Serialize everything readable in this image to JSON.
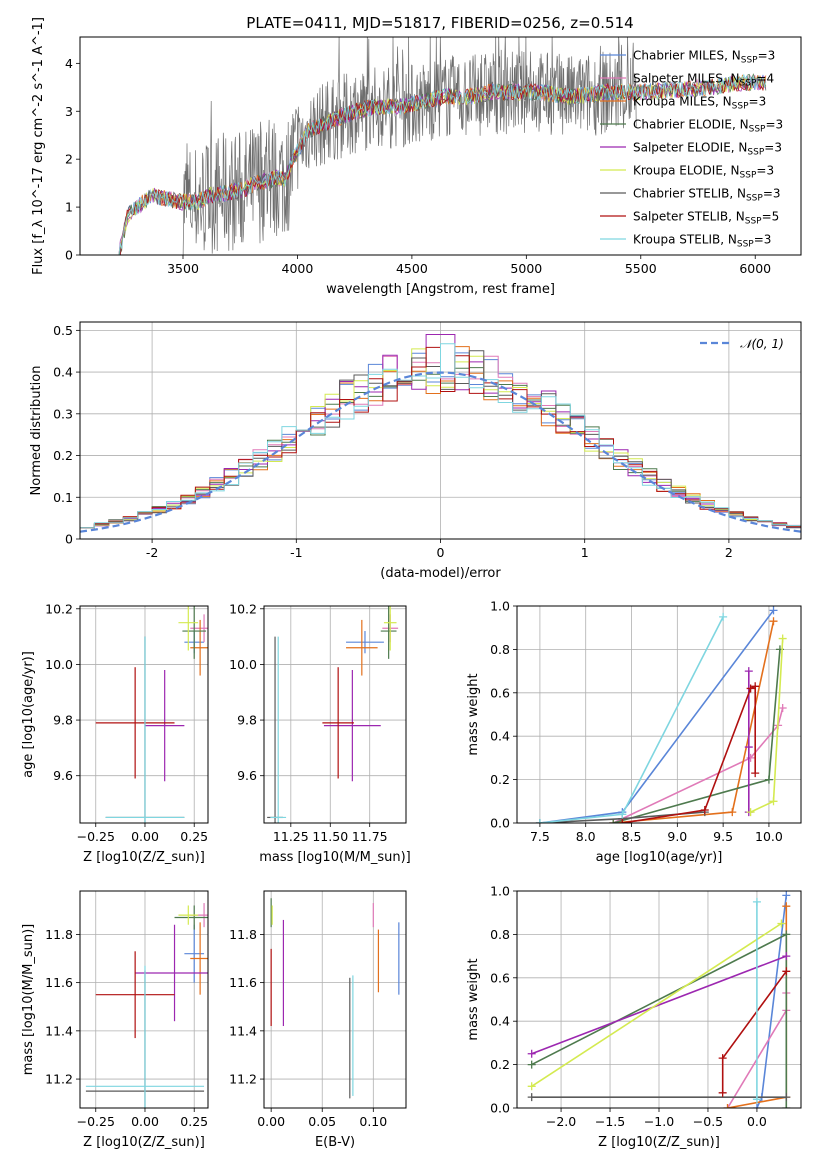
{
  "title": "PLATE=0411, MJD=51817, FIBERID=0256, z=0.514",
  "colors": {
    "Chabrier MILES": "#5a86d8",
    "Salpeter MILES": "#e07ab8",
    "Kroupa MILES": "#e3701c",
    "Chabrier ELODIE": "#4e7a4e",
    "Salpeter ELODIE": "#9c27b0",
    "Kroupa ELODIE": "#d4ea50",
    "Chabrier STELIB": "#5a5a5a",
    "Salpeter STELIB": "#b01010",
    "Kroupa STELIB": "#7fd6e0"
  },
  "legend_labels": [
    "Chabrier MILES, N_SSP=3",
    "Salpeter MILES, N_SSP=4",
    "Kroupa MILES, N_SSP=3",
    "Chabrier ELODIE, N_SSP=3",
    "Salpeter ELODIE, N_SSP=3",
    "Kroupa ELODIE, N_SSP=3",
    "Chabrier STELIB, N_SSP=3",
    "Salpeter STELIB, N_SSP=5",
    "Kroupa STELIB, N_SSP=3"
  ],
  "chart_data": [
    {
      "type": "line",
      "title": "PLATE=0411, MJD=51817, FIBERID=0256, z=0.514",
      "xlabel": "wavelength [Angstrom, rest frame]",
      "ylabel": "Flux [f_λ 10^-17 erg cm^-2 s^-1 A^-1]",
      "xlim": [
        3050,
        6200
      ],
      "ylim": [
        0,
        4.55
      ],
      "xticks": [
        3500,
        4000,
        4500,
        5000,
        5500,
        6000
      ],
      "yticks": [
        0,
        1,
        2,
        3,
        4
      ],
      "model_continuum": {
        "x": [
          3220,
          3260,
          3300,
          3360,
          3450,
          3500,
          3560,
          3620,
          3700,
          3760,
          3820,
          3900,
          3950,
          3980,
          4050,
          4150,
          4250,
          4350,
          4450,
          4550,
          4650,
          4750,
          4850,
          4950,
          5050,
          5200,
          5350,
          5500,
          5650,
          5800,
          5950,
          6050
        ],
        "y": [
          0.0,
          0.85,
          1.0,
          1.25,
          1.15,
          1.1,
          1.1,
          1.25,
          1.3,
          1.35,
          1.5,
          1.6,
          1.6,
          2.0,
          2.6,
          2.8,
          3.0,
          3.1,
          3.1,
          3.2,
          3.3,
          3.3,
          3.4,
          3.4,
          3.4,
          3.3,
          3.4,
          3.4,
          3.45,
          3.5,
          3.6,
          3.6
        ]
      },
      "data_spectrum": "noisy observed spectrum (gray), 3500–5500 Angstrom"
    },
    {
      "type": "histogram",
      "xlabel": "(data-model)/error",
      "ylabel": "Normed distribution",
      "xlim": [
        -2.5,
        2.5
      ],
      "ylim": [
        0,
        0.52
      ],
      "xticks": [
        -2,
        -1,
        0,
        1,
        2
      ],
      "yticks": [
        0.0,
        0.1,
        0.2,
        0.3,
        0.4,
        0.5
      ],
      "reference": {
        "name": "N(0,1)",
        "mean": 0,
        "sigma": 1
      },
      "bin_width": 0.1,
      "histogram_peak": 0.49
    },
    {
      "type": "scatter",
      "xlabel": "Z [log10(Z/Z_sun)]",
      "ylabel": "age [log10(age/yr)]",
      "xlim": [
        -0.33,
        0.32
      ],
      "ylim": [
        9.43,
        10.21
      ],
      "xticks": [
        -0.25,
        0.0,
        0.25
      ],
      "yticks": [
        9.6,
        9.8,
        10.0,
        10.2
      ],
      "xticklabels": [
        "−0.25",
        "0.00",
        "0.25"
      ],
      "yticklabels": [
        "9.6",
        "9.8",
        "10.0",
        "10.2"
      ],
      "points": [
        {
          "model": "Chabrier MILES",
          "x": 0.25,
          "y": 10.08,
          "xerr": 0.05,
          "yerr": 0.04
        },
        {
          "model": "Salpeter MILES",
          "x": 0.3,
          "y": 10.13,
          "xerr": 0.07,
          "yerr": 0.05
        },
        {
          "model": "Kroupa MILES",
          "x": 0.28,
          "y": 10.06,
          "xerr": 0.05,
          "yerr": 0.1
        },
        {
          "model": "Chabrier ELODIE",
          "x": 0.25,
          "y": 10.12,
          "xerr": 0.06,
          "yerr": 0.1
        },
        {
          "model": "Salpeter ELODIE",
          "x": 0.1,
          "y": 9.78,
          "xerr": 0.1,
          "yerr": 0.2
        },
        {
          "model": "Kroupa ELODIE",
          "x": 0.22,
          "y": 10.15,
          "xerr": 0.05,
          "yerr": 0.1
        },
        {
          "model": "Chabrier STELIB",
          "x": 0.0,
          "y": 9.45,
          "xerr": 0.2,
          "yerr": 0.65
        },
        {
          "model": "Salpeter STELIB",
          "x": -0.05,
          "y": 9.79,
          "xerr": 0.2,
          "yerr": 0.2
        },
        {
          "model": "Kroupa STELIB",
          "x": 0.0,
          "y": 9.45,
          "xerr": 0.2,
          "yerr": 0.65
        }
      ]
    },
    {
      "type": "scatter",
      "xlabel": "mass [log10(M/M_sun)]",
      "ylabel": "",
      "xlim": [
        11.08,
        11.98
      ],
      "ylim": [
        9.43,
        10.21
      ],
      "xticks": [
        11.25,
        11.5,
        11.75
      ],
      "yticks": [
        9.6,
        9.8,
        10.0,
        10.2
      ],
      "xticklabels": [
        "11.25",
        "11.50",
        "11.75"
      ],
      "yticklabels": [
        "9.6",
        "9.8",
        "10.0",
        "10.2"
      ],
      "points": [
        {
          "model": "Chabrier MILES",
          "x": 11.72,
          "y": 10.08,
          "xerr": 0.12,
          "yerr": 0.04
        },
        {
          "model": "Salpeter MILES",
          "x": 11.88,
          "y": 10.13,
          "xerr": 0.05,
          "yerr": 0.05
        },
        {
          "model": "Kroupa MILES",
          "x": 11.7,
          "y": 10.06,
          "xerr": 0.1,
          "yerr": 0.1
        },
        {
          "model": "Chabrier ELODIE",
          "x": 11.87,
          "y": 10.12,
          "xerr": 0.05,
          "yerr": 0.1
        },
        {
          "model": "Salpeter ELODIE",
          "x": 11.64,
          "y": 9.78,
          "xerr": 0.18,
          "yerr": 0.2
        },
        {
          "model": "Kroupa ELODIE",
          "x": 11.88,
          "y": 10.15,
          "xerr": 0.04,
          "yerr": 0.1
        },
        {
          "model": "Chabrier STELIB",
          "x": 11.15,
          "y": 9.45,
          "xerr": 0.05,
          "yerr": 0.65
        },
        {
          "model": "Salpeter STELIB",
          "x": 11.55,
          "y": 9.79,
          "xerr": 0.1,
          "yerr": 0.2
        },
        {
          "model": "Kroupa STELIB",
          "x": 11.17,
          "y": 9.45,
          "xerr": 0.05,
          "yerr": 0.65
        }
      ]
    },
    {
      "type": "line",
      "xlabel": "age [log10(age/yr)]",
      "ylabel": "mass weight",
      "xlim": [
        7.25,
        10.35
      ],
      "ylim": [
        0,
        1
      ],
      "xticks": [
        7.5,
        8.0,
        8.5,
        9.0,
        9.5,
        10.0
      ],
      "yticks": [
        0.0,
        0.2,
        0.4,
        0.6,
        0.8,
        1.0
      ],
      "xticklabels": [
        "7.5",
        "8.0",
        "8.5",
        "9.0",
        "9.5",
        "10.0"
      ],
      "yticklabels": [
        "0.0",
        "0.2",
        "0.4",
        "0.6",
        "0.8",
        "1.0"
      ],
      "series": [
        {
          "model": "Chabrier MILES",
          "x": [
            7.5,
            8.4,
            10.05
          ],
          "y": [
            0.0,
            0.05,
            0.98
          ]
        },
        {
          "model": "Salpeter MILES",
          "x": [
            8.3,
            9.8,
            10.1,
            10.15
          ],
          "y": [
            0.0,
            0.3,
            0.45,
            0.53
          ]
        },
        {
          "model": "Kroupa MILES",
          "x": [
            8.3,
            9.6,
            10.05
          ],
          "y": [
            0.0,
            0.05,
            0.93
          ]
        },
        {
          "model": "Chabrier ELODIE",
          "x": [
            8.3,
            10.0,
            10.12
          ],
          "y": [
            0.0,
            0.2,
            0.8
          ]
        },
        {
          "model": "Salpeter ELODIE",
          "x": [
            9.78,
            9.78,
            9.78
          ],
          "y": [
            0.05,
            0.35,
            0.7
          ]
        },
        {
          "model": "Kroupa ELODIE",
          "x": [
            9.8,
            10.05,
            10.15
          ],
          "y": [
            0.05,
            0.1,
            0.85
          ]
        },
        {
          "model": "Chabrier STELIB",
          "x": [
            7.5,
            8.4,
            9.3
          ],
          "y": [
            0.0,
            0.02,
            0.05
          ]
        },
        {
          "model": "Salpeter STELIB",
          "x": [
            8.4,
            9.3,
            9.8,
            9.85,
            9.85
          ],
          "y": [
            0.0,
            0.06,
            0.62,
            0.63,
            0.23
          ]
        },
        {
          "model": "Kroupa STELIB",
          "x": [
            7.5,
            8.4,
            9.5
          ],
          "y": [
            0.0,
            0.04,
            0.95
          ]
        }
      ]
    },
    {
      "type": "scatter",
      "xlabel": "Z [log10(Z/Z_sun)]",
      "ylabel": "mass [log10(M/M_sun)]",
      "xlim": [
        -0.33,
        0.32
      ],
      "ylim": [
        11.08,
        11.98
      ],
      "xticks": [
        -0.25,
        0.0,
        0.25
      ],
      "yticks": [
        11.2,
        11.4,
        11.6,
        11.8
      ],
      "xticklabels": [
        "−0.25",
        "0.00",
        "0.25"
      ],
      "yticklabels": [
        "11.2",
        "11.4",
        "11.6",
        "11.8"
      ],
      "points": [
        {
          "model": "Chabrier MILES",
          "x": 0.25,
          "y": 11.72,
          "xerr": 0.05,
          "yerr": 0.12
        },
        {
          "model": "Salpeter MILES",
          "x": 0.3,
          "y": 11.88,
          "xerr": 0.07,
          "yerr": 0.05
        },
        {
          "model": "Kroupa MILES",
          "x": 0.28,
          "y": 11.7,
          "xerr": 0.05,
          "yerr": 0.15
        },
        {
          "model": "Chabrier ELODIE",
          "x": 0.25,
          "y": 11.87,
          "xerr": 0.1,
          "yerr": 0.05
        },
        {
          "model": "Salpeter ELODIE",
          "x": 0.15,
          "y": 11.64,
          "xerr": 0.2,
          "yerr": 0.2
        },
        {
          "model": "Kroupa ELODIE",
          "x": 0.22,
          "y": 11.88,
          "xerr": 0.05,
          "yerr": 0.04
        },
        {
          "model": "Chabrier STELIB",
          "x": 0.0,
          "y": 11.15,
          "xerr": 0.3,
          "yerr": 0.5
        },
        {
          "model": "Salpeter STELIB",
          "x": -0.05,
          "y": 11.55,
          "xerr": 0.2,
          "yerr": 0.18
        },
        {
          "model": "Kroupa STELIB",
          "x": 0.0,
          "y": 11.17,
          "xerr": 0.3,
          "yerr": 0.5
        }
      ]
    },
    {
      "type": "scatter",
      "xlabel": "E(B-V)",
      "ylabel": "",
      "xlim": [
        -0.007,
        0.132
      ],
      "ylim": [
        11.08,
        11.98
      ],
      "xticks": [
        0.0,
        0.05,
        0.1
      ],
      "yticks": [
        11.2,
        11.4,
        11.6,
        11.8
      ],
      "xticklabels": [
        "0.00",
        "0.05",
        "0.10"
      ],
      "yticklabels": [
        "11.2",
        "11.4",
        "11.6",
        "11.8"
      ],
      "points": [
        {
          "model": "Chabrier MILES",
          "x": 0.125,
          "y": 11.7,
          "xerr": 0,
          "yerr": 0.15
        },
        {
          "model": "Salpeter MILES",
          "x": 0.1,
          "y": 11.88,
          "xerr": 0,
          "yerr": 0.05
        },
        {
          "model": "Kroupa MILES",
          "x": 0.105,
          "y": 11.69,
          "xerr": 0,
          "yerr": 0.13
        },
        {
          "model": "Chabrier ELODIE",
          "x": 0.0,
          "y": 11.89,
          "xerr": 0,
          "yerr": 0.06
        },
        {
          "model": "Salpeter ELODIE",
          "x": 0.012,
          "y": 11.64,
          "xerr": 0,
          "yerr": 0.22
        },
        {
          "model": "Kroupa ELODIE",
          "x": 0.001,
          "y": 11.88,
          "xerr": 0,
          "yerr": 0.04
        },
        {
          "model": "Chabrier STELIB",
          "x": 0.077,
          "y": 11.37,
          "xerr": 0,
          "yerr": 0.25
        },
        {
          "model": "Salpeter STELIB",
          "x": 0.0,
          "y": 11.58,
          "xerr": 0,
          "yerr": 0.16
        },
        {
          "model": "Kroupa STELIB",
          "x": 0.08,
          "y": 11.38,
          "xerr": 0,
          "yerr": 0.25
        }
      ]
    },
    {
      "type": "line",
      "xlabel": "Z [log10(Z/Z_sun)]",
      "ylabel": "mass weight",
      "xlim": [
        -2.45,
        0.45
      ],
      "ylim": [
        0,
        1
      ],
      "xticks": [
        -2.0,
        -1.5,
        -1.0,
        -0.5,
        0.0
      ],
      "yticks": [
        0.0,
        0.2,
        0.4,
        0.6,
        0.8,
        1.0
      ],
      "xticklabels": [
        "−2.0",
        "−1.5",
        "−1.0",
        "−0.5",
        "0.0"
      ],
      "yticklabels": [
        "0.0",
        "0.2",
        "0.4",
        "0.6",
        "0.8",
        "1.0"
      ],
      "series": [
        {
          "model": "Chabrier MILES",
          "x": [
            0.0,
            0.05,
            0.3
          ],
          "y": [
            0.0,
            0.05,
            0.98
          ]
        },
        {
          "model": "Salpeter MILES",
          "x": [
            -0.3,
            0.3,
            0.3
          ],
          "y": [
            0.0,
            0.45,
            0.53
          ]
        },
        {
          "model": "Kroupa MILES",
          "x": [
            -0.3,
            0.3,
            0.3
          ],
          "y": [
            0.0,
            0.05,
            0.93
          ]
        },
        {
          "model": "Chabrier ELODIE",
          "x": [
            -2.3,
            0.3,
            0.3
          ],
          "y": [
            0.2,
            0.8,
            0.0
          ]
        },
        {
          "model": "Salpeter ELODIE",
          "x": [
            -2.3,
            0.3
          ],
          "y": [
            0.25,
            0.7
          ]
        },
        {
          "model": "Kroupa ELODIE",
          "x": [
            -2.3,
            0.25
          ],
          "y": [
            0.1,
            0.85
          ]
        },
        {
          "model": "Chabrier STELIB",
          "x": [
            -2.3,
            0.3
          ],
          "y": [
            0.05,
            0.05
          ]
        },
        {
          "model": "Salpeter STELIB",
          "x": [
            -0.35,
            -0.35,
            0.3
          ],
          "y": [
            0.07,
            0.23,
            0.63
          ]
        },
        {
          "model": "Kroupa STELIB",
          "x": [
            0.0,
            0.0
          ],
          "y": [
            0.04,
            0.95
          ]
        }
      ]
    }
  ]
}
